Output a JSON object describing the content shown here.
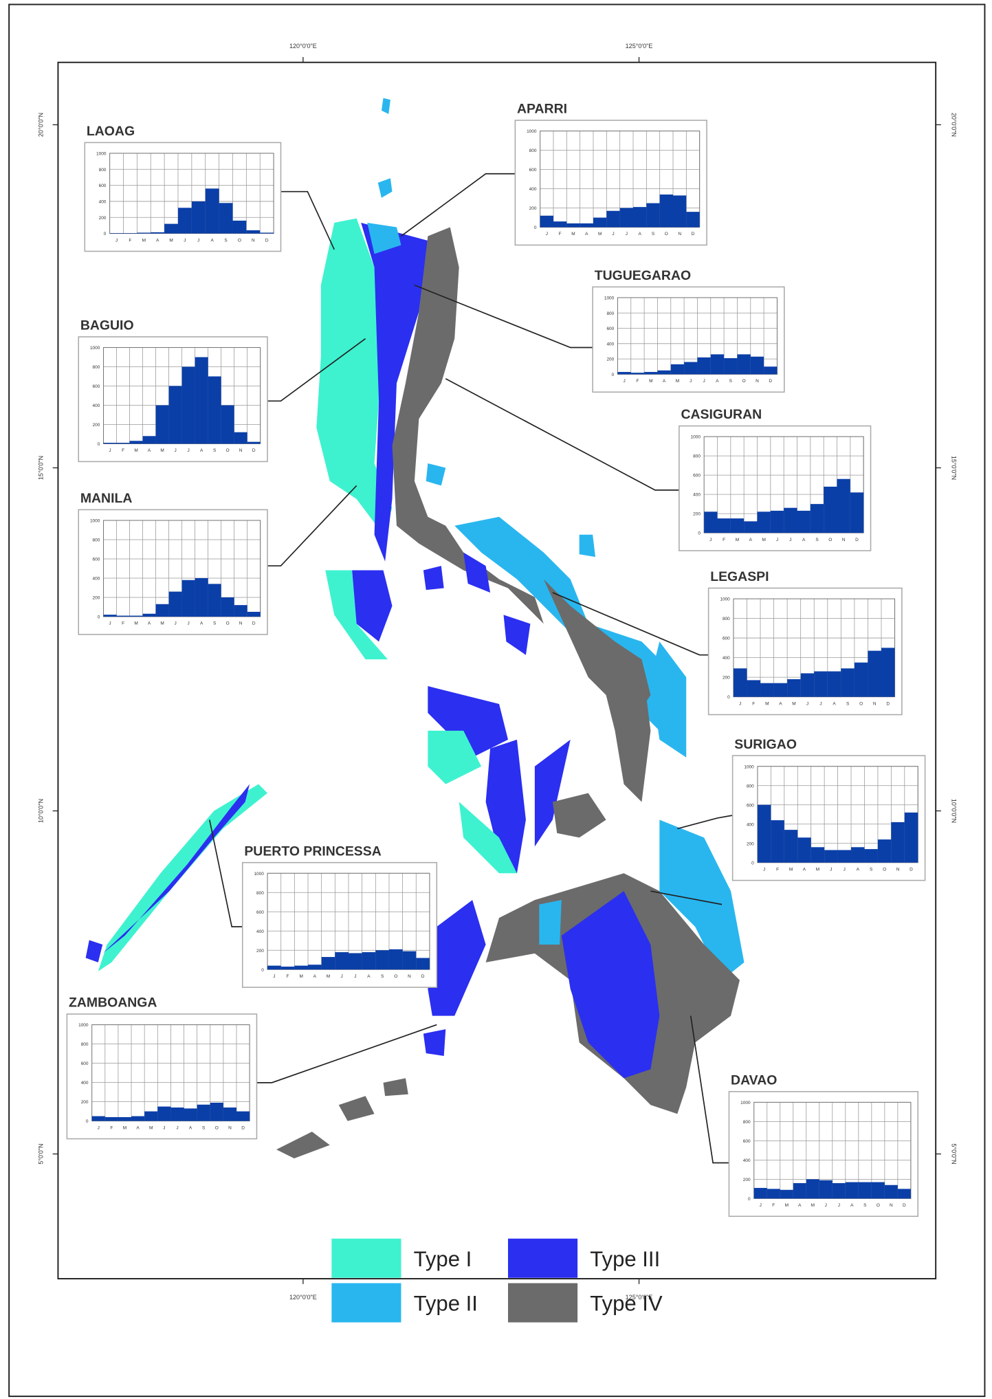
{
  "map": {
    "longitude_labels": [
      "120°0'0\"E",
      "125°0'0\"E"
    ],
    "latitude_labels": [
      "20°0'0\"N",
      "15°0'0\"N",
      "10°0'0\"N",
      "5°0'0\"N"
    ],
    "legend": [
      {
        "label": "Type I",
        "color": "#3ef2d0"
      },
      {
        "label": "Type II",
        "color": "#29b6ef"
      },
      {
        "label": "Type III",
        "color": "#2b2ff0"
      },
      {
        "label": "Type IV",
        "color": "#6b6b6b"
      }
    ]
  },
  "chart_data": [
    {
      "type": "bar",
      "title": "LAOAG",
      "color": "#0b3fa8",
      "categories": [
        "J",
        "F",
        "M",
        "A",
        "M",
        "J",
        "J",
        "A",
        "S",
        "O",
        "N",
        "D"
      ],
      "values": [
        5,
        5,
        10,
        15,
        120,
        320,
        400,
        560,
        380,
        160,
        40,
        10
      ],
      "ylim": [
        0,
        1000
      ],
      "yticks": [
        0,
        200,
        400,
        600,
        800,
        1000
      ],
      "grid": true
    },
    {
      "type": "bar",
      "title": "APARRI",
      "color": "#0b3fa8",
      "categories": [
        "J",
        "F",
        "M",
        "A",
        "M",
        "J",
        "J",
        "A",
        "S",
        "O",
        "N",
        "D"
      ],
      "values": [
        120,
        60,
        40,
        40,
        100,
        170,
        200,
        210,
        250,
        340,
        330,
        160
      ],
      "ylim": [
        0,
        1000
      ],
      "yticks": [
        0,
        200,
        400,
        600,
        800,
        1000
      ],
      "grid": true
    },
    {
      "type": "bar",
      "title": "TUGUEGARAO",
      "color": "#0b3fa8",
      "categories": [
        "J",
        "F",
        "M",
        "A",
        "M",
        "J",
        "J",
        "A",
        "S",
        "O",
        "N",
        "D"
      ],
      "values": [
        30,
        20,
        30,
        50,
        130,
        160,
        220,
        260,
        210,
        260,
        230,
        100
      ],
      "ylim": [
        0,
        1000
      ],
      "yticks": [
        0,
        200,
        400,
        600,
        800,
        1000
      ],
      "grid": true
    },
    {
      "type": "bar",
      "title": "BAGUIO",
      "color": "#0b3fa8",
      "categories": [
        "J",
        "F",
        "M",
        "A",
        "M",
        "J",
        "J",
        "A",
        "S",
        "O",
        "N",
        "D"
      ],
      "values": [
        10,
        10,
        30,
        80,
        400,
        600,
        800,
        900,
        700,
        400,
        120,
        20
      ],
      "ylim": [
        0,
        1000
      ],
      "yticks": [
        0,
        200,
        400,
        600,
        800,
        1000
      ],
      "grid": true
    },
    {
      "type": "bar",
      "title": "CASIGURAN",
      "color": "#0b3fa8",
      "categories": [
        "J",
        "F",
        "M",
        "A",
        "M",
        "J",
        "J",
        "A",
        "S",
        "O",
        "N",
        "D"
      ],
      "values": [
        220,
        150,
        150,
        120,
        220,
        230,
        260,
        230,
        300,
        480,
        560,
        420
      ],
      "ylim": [
        0,
        1000
      ],
      "yticks": [
        0,
        200,
        400,
        600,
        800,
        1000
      ],
      "grid": true
    },
    {
      "type": "bar",
      "title": "MANILA",
      "color": "#0b3fa8",
      "categories": [
        "J",
        "F",
        "M",
        "A",
        "M",
        "J",
        "J",
        "A",
        "S",
        "O",
        "N",
        "D"
      ],
      "values": [
        20,
        10,
        10,
        30,
        130,
        260,
        380,
        400,
        340,
        200,
        120,
        50
      ],
      "ylim": [
        0,
        1000
      ],
      "yticks": [
        0,
        200,
        400,
        600,
        800,
        1000
      ],
      "grid": true
    },
    {
      "type": "bar",
      "title": "LEGASPI",
      "color": "#0b3fa8",
      "categories": [
        "J",
        "F",
        "M",
        "A",
        "M",
        "J",
        "J",
        "A",
        "S",
        "O",
        "N",
        "D"
      ],
      "values": [
        290,
        170,
        140,
        140,
        180,
        240,
        260,
        260,
        290,
        350,
        470,
        500
      ],
      "ylim": [
        0,
        1000
      ],
      "yticks": [
        0,
        200,
        400,
        600,
        800,
        1000
      ],
      "grid": true
    },
    {
      "type": "bar",
      "title": "SURIGAO",
      "color": "#0b3fa8",
      "categories": [
        "J",
        "F",
        "M",
        "A",
        "M",
        "J",
        "J",
        "A",
        "S",
        "O",
        "N",
        "D"
      ],
      "values": [
        600,
        440,
        340,
        260,
        160,
        130,
        130,
        160,
        140,
        240,
        420,
        520
      ],
      "ylim": [
        0,
        1000
      ],
      "yticks": [
        0,
        200,
        400,
        600,
        800,
        1000
      ],
      "grid": true
    },
    {
      "type": "bar",
      "title": "PUERTO PRINCESSA",
      "color": "#0b3fa8",
      "categories": [
        "J",
        "F",
        "M",
        "A",
        "M",
        "J",
        "J",
        "A",
        "S",
        "O",
        "N",
        "D"
      ],
      "values": [
        40,
        30,
        40,
        50,
        130,
        180,
        170,
        180,
        200,
        210,
        190,
        120
      ],
      "ylim": [
        0,
        1000
      ],
      "yticks": [
        0,
        200,
        400,
        600,
        800,
        1000
      ],
      "grid": true
    },
    {
      "type": "bar",
      "title": "ZAMBOANGA",
      "color": "#0b3fa8",
      "categories": [
        "J",
        "F",
        "M",
        "A",
        "M",
        "J",
        "J",
        "A",
        "S",
        "O",
        "N",
        "D"
      ],
      "values": [
        50,
        40,
        40,
        50,
        100,
        150,
        140,
        130,
        170,
        190,
        140,
        100
      ],
      "ylim": [
        0,
        1000
      ],
      "yticks": [
        0,
        200,
        400,
        600,
        800,
        1000
      ],
      "grid": true
    },
    {
      "type": "bar",
      "title": "DAVAO",
      "color": "#0b3fa8",
      "categories": [
        "J",
        "F",
        "M",
        "A",
        "M",
        "J",
        "J",
        "A",
        "S",
        "O",
        "N",
        "D"
      ],
      "values": [
        110,
        100,
        90,
        160,
        200,
        190,
        160,
        170,
        170,
        170,
        140,
        100
      ],
      "ylim": [
        0,
        1000
      ],
      "yticks": [
        0,
        200,
        400,
        600,
        800,
        1000
      ],
      "grid": true
    }
  ]
}
